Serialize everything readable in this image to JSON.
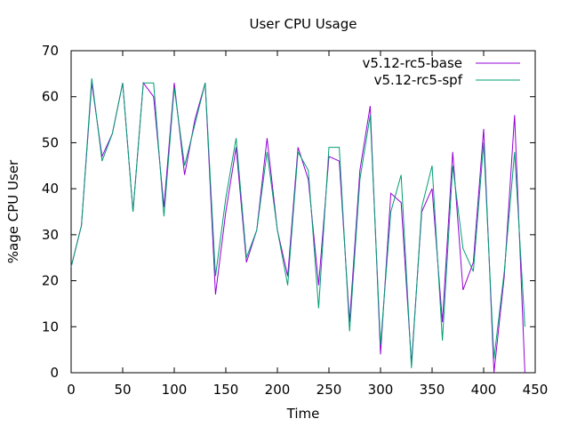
{
  "chart_data": {
    "type": "line",
    "title": "User CPU Usage",
    "xlabel": "Time",
    "ylabel": "%age CPU User",
    "xlim": [
      0,
      450
    ],
    "ylim": [
      0,
      70
    ],
    "x_ticks": [
      0,
      50,
      100,
      150,
      200,
      250,
      300,
      350,
      400,
      450
    ],
    "y_ticks": [
      0,
      10,
      20,
      30,
      40,
      50,
      60,
      70
    ],
    "grid": false,
    "legend_position": "top-right",
    "series": [
      {
        "name": "v5.12-rc5-base",
        "color": "#9400d3",
        "x": [
          0,
          10,
          20,
          30,
          40,
          50,
          60,
          70,
          80,
          90,
          100,
          110,
          120,
          130,
          140,
          150,
          160,
          170,
          180,
          190,
          200,
          210,
          220,
          230,
          240,
          250,
          260,
          270,
          280,
          290,
          300,
          310,
          320,
          330,
          340,
          350,
          360,
          370,
          380,
          390,
          400,
          410,
          420,
          430,
          440
        ],
        "y": [
          23,
          32,
          63,
          47,
          52,
          63,
          35,
          63,
          60,
          36,
          63,
          43,
          55,
          63,
          17,
          35,
          49,
          24,
          31,
          51,
          31,
          21,
          49,
          42,
          19,
          47,
          46,
          11,
          44,
          58,
          4,
          39,
          37,
          2,
          35,
          40,
          11,
          48,
          18,
          24,
          53,
          0,
          21,
          56,
          0
        ]
      },
      {
        "name": "v5.12-rc5-spf",
        "color": "#009e73",
        "x": [
          0,
          10,
          20,
          30,
          40,
          50,
          60,
          70,
          80,
          90,
          100,
          110,
          120,
          130,
          140,
          150,
          160,
          170,
          180,
          190,
          200,
          210,
          220,
          230,
          240,
          250,
          260,
          270,
          280,
          290,
          300,
          310,
          320,
          330,
          340,
          350,
          360,
          370,
          380,
          390,
          400,
          410,
          420,
          430,
          440
        ],
        "y": [
          23,
          32,
          64,
          46,
          52,
          63,
          35,
          63,
          63,
          34,
          62,
          45,
          54,
          63,
          21,
          38,
          51,
          25,
          31,
          48,
          31,
          19,
          48,
          44,
          14,
          49,
          49,
          9,
          42,
          56,
          6,
          35,
          43,
          1,
          36,
          45,
          7,
          45,
          27,
          22,
          50,
          3,
          22,
          48,
          10
        ]
      }
    ]
  }
}
